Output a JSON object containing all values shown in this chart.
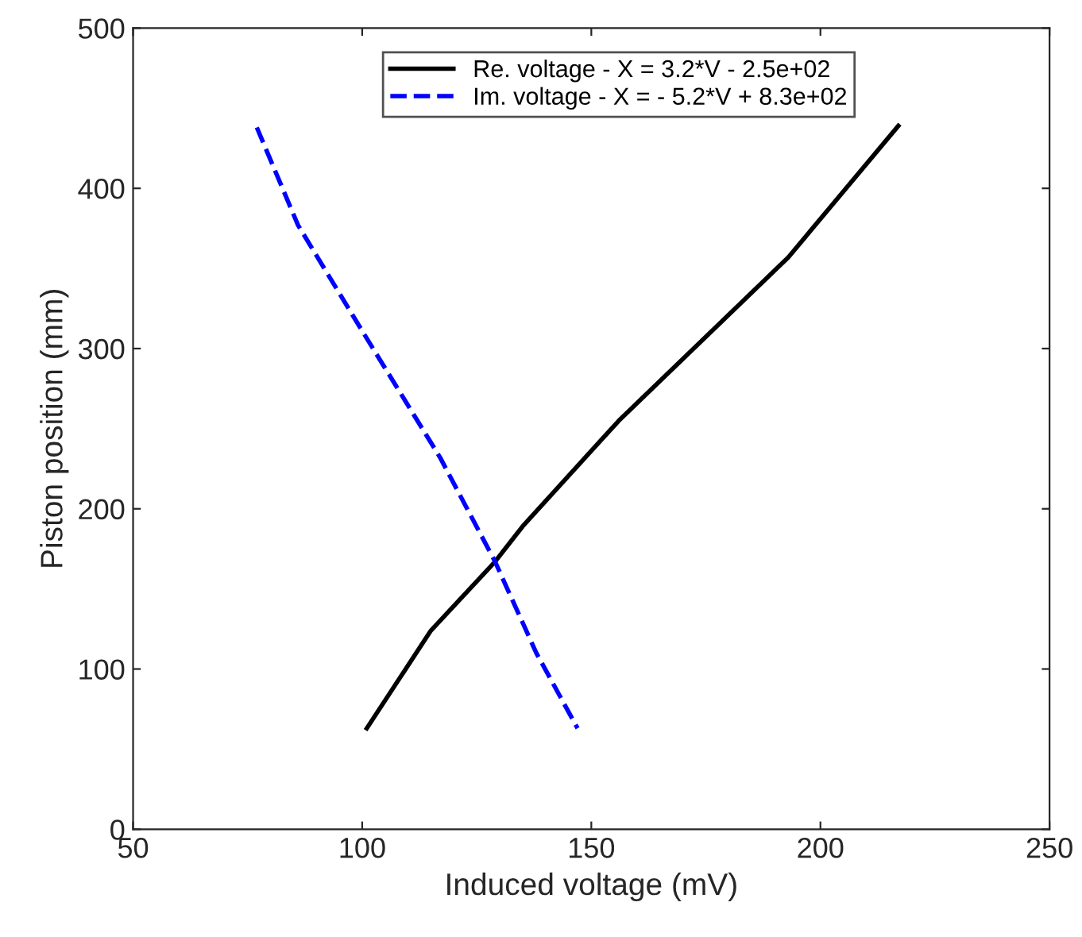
{
  "chart_data": {
    "type": "line",
    "xlabel": "Induced voltage (mV)",
    "ylabel": "Piston position (mm)",
    "series": [
      {
        "name": "Re. voltage - X = 3.2*V - 2.5e+02",
        "color": "#000000",
        "line_style": "solid",
        "x": [
          101,
          115,
          129,
          135,
          156,
          193,
          217
        ],
        "values": [
          63,
          124,
          167,
          189,
          255,
          357,
          439
        ]
      },
      {
        "name": "Im. voltage - X = - 5.2*V + 8.3e+02",
        "color": "#0000ff",
        "line_style": "dashed",
        "x": [
          77,
          86,
          100,
          117,
          129,
          138,
          147
        ],
        "values": [
          438,
          377,
          311,
          232,
          167,
          110,
          63
        ]
      }
    ],
    "xlim": [
      50,
      250
    ],
    "xticks": [
      50,
      100,
      150,
      200,
      250
    ],
    "ylim": [
      0,
      500
    ],
    "yticks": [
      0,
      100,
      200,
      300,
      400,
      500
    ],
    "grid": false,
    "legend": "top",
    "marker": "none"
  }
}
